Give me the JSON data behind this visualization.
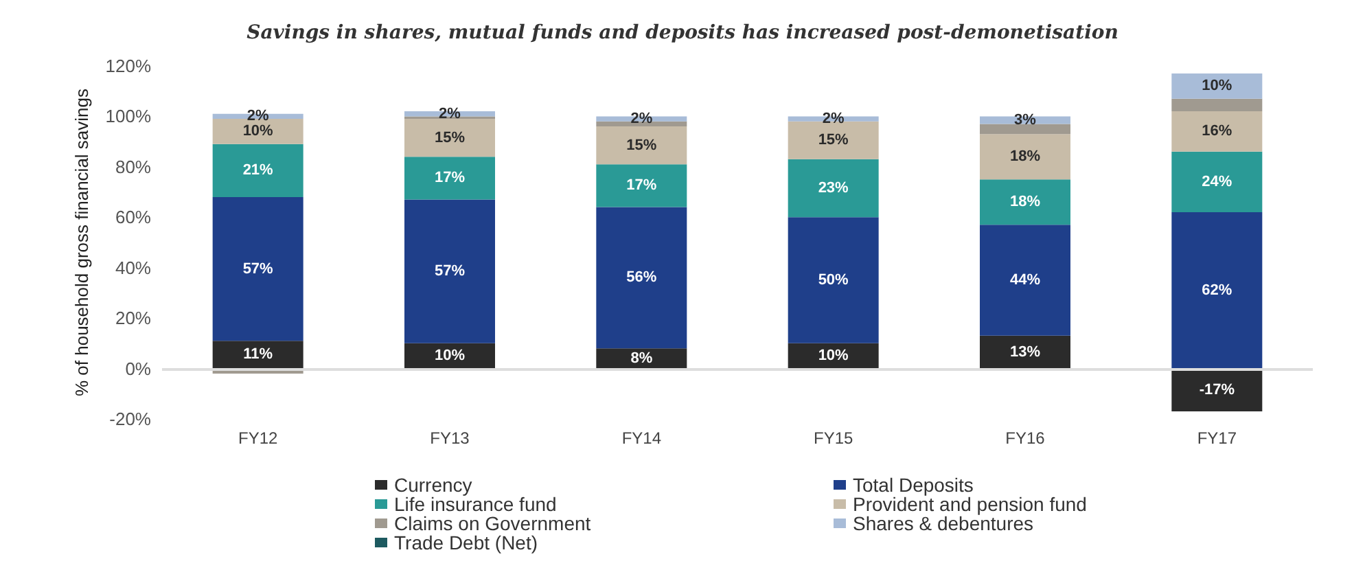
{
  "chart_data": {
    "type": "bar",
    "stacked": true,
    "title": "Savings in shares, mutual funds and deposits has increased post-demonetisation",
    "ylabel": "% of household gross financial savings",
    "categories": [
      "FY12",
      "FY13",
      "FY14",
      "FY15",
      "FY16",
      "FY17"
    ],
    "series": [
      {
        "name": "Currency",
        "color": "#2b2b2b",
        "values": [
          11,
          10,
          8,
          10,
          13,
          -17
        ],
        "value_labels": [
          "11%",
          "10%",
          "8%",
          "10%",
          "13%",
          "-17%"
        ]
      },
      {
        "name": "Total Deposits",
        "color": "#1f3f8a",
        "values": [
          57,
          57,
          56,
          50,
          44,
          62
        ],
        "value_labels": [
          "57%",
          "57%",
          "56%",
          "50%",
          "44%",
          "62%"
        ]
      },
      {
        "name": "Life insurance fund",
        "color": "#2a9a96",
        "values": [
          21,
          17,
          17,
          23,
          18,
          24
        ],
        "value_labels": [
          "21%",
          "17%",
          "17%",
          "23%",
          "18%",
          "24%"
        ]
      },
      {
        "name": "Provident and pension fund",
        "color": "#c8bca8",
        "values": [
          10,
          15,
          15,
          15,
          18,
          16
        ],
        "value_labels": [
          "10%",
          "15%",
          "15%",
          "15%",
          "18%",
          "16%"
        ]
      },
      {
        "name": "Claims on Government",
        "color": "#a09a90",
        "values": [
          -2,
          1,
          2,
          0,
          4,
          5
        ]
      },
      {
        "name": "Shares & debentures",
        "color": "#a8bcd8",
        "values": [
          2,
          2,
          2,
          2,
          3,
          10
        ],
        "value_labels": [
          "2%",
          "2%",
          "2%",
          "2%",
          "3%",
          "10%"
        ]
      },
      {
        "name": "Trade Debt (Net)",
        "color": "#1d5a60",
        "values": [
          0,
          0,
          0,
          0,
          0,
          0
        ]
      }
    ],
    "ylim": [
      -20,
      120
    ],
    "yticks": [
      {
        "value": -20,
        "label": "-20%"
      },
      {
        "value": 0,
        "label": "0%"
      },
      {
        "value": 20,
        "label": "20%"
      },
      {
        "value": 40,
        "label": "40%"
      },
      {
        "value": 60,
        "label": "60%"
      },
      {
        "value": 80,
        "label": "80%"
      },
      {
        "value": 100,
        "label": "100%"
      },
      {
        "value": 120,
        "label": "120%"
      }
    ],
    "ref_lines": [
      {
        "axis": "y",
        "value": 0,
        "color": "#dddddd"
      }
    ],
    "grid": false,
    "legend": "bottom"
  }
}
